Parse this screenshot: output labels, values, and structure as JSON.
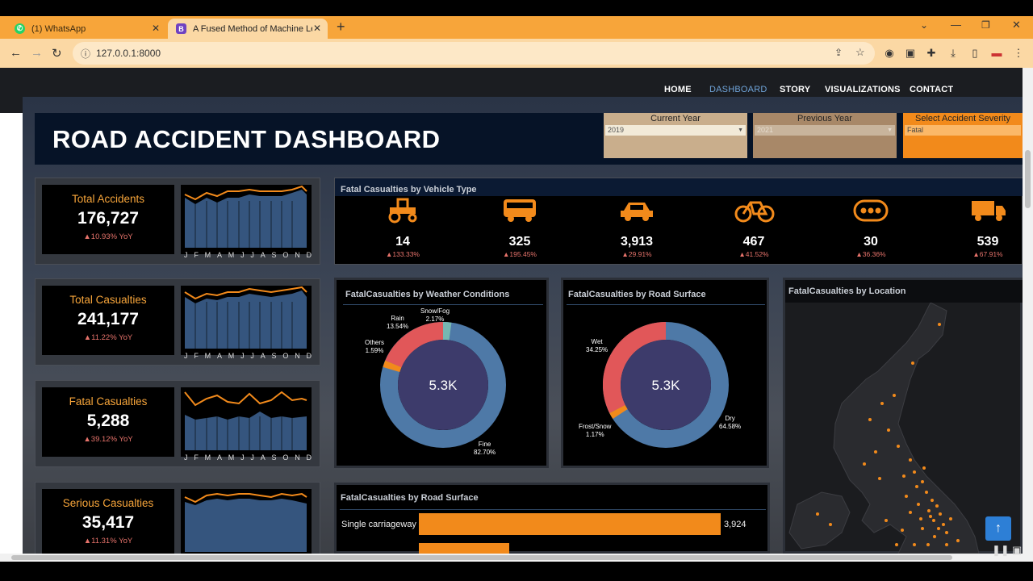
{
  "browser": {
    "tabs": [
      {
        "label": "(1) WhatsApp",
        "icon": "whatsapp-icon"
      },
      {
        "label": "A Fused Method of Machine Lea",
        "icon": "bootstrap-icon"
      }
    ],
    "new_tab_glyph": "+",
    "url": "127.0.0.1:8000"
  },
  "site_nav": {
    "items": [
      "HOME",
      "DASHBOARD",
      "STORY",
      "VISUALIZATIONS",
      "CONTACT"
    ],
    "active": "DASHBOARD"
  },
  "dashboard": {
    "title": "ROAD ACCIDENT DASHBOARD",
    "filters": [
      {
        "label": "Current Year",
        "value": "2019"
      },
      {
        "label": "Previous Year",
        "value": "2021"
      },
      {
        "label": "Select Accident Severity",
        "value": "Fatal"
      }
    ],
    "months": [
      "J",
      "F",
      "M",
      "A",
      "M",
      "J",
      "J",
      "A",
      "S",
      "O",
      "N",
      "D"
    ],
    "kpis": [
      {
        "label": "Total Accidents",
        "value": "176,727",
        "yoy": "▲10.93% YoY"
      },
      {
        "label": "Total Casualties",
        "value": "241,177",
        "yoy": "▲11.22% YoY"
      },
      {
        "label": "Fatal Casualties",
        "value": "5,288",
        "yoy": "▲39.12% YoY"
      },
      {
        "label": "Serious Casualties",
        "value": "35,417",
        "yoy": "▲11.31% YoY"
      }
    ],
    "vehicle_panel": {
      "title": "Fatal Casualties by Vehicle Type",
      "items": [
        {
          "icon": "tractor-icon",
          "value": "14",
          "pct": "▲133.33%"
        },
        {
          "icon": "bus-icon",
          "value": "325",
          "pct": "▲195.45%"
        },
        {
          "icon": "car-icon",
          "value": "3,913",
          "pct": "▲29.91%"
        },
        {
          "icon": "bicycle-icon",
          "value": "467",
          "pct": "▲41.52%"
        },
        {
          "icon": "other-vehicle-icon",
          "value": "30",
          "pct": "▲36.36%"
        },
        {
          "icon": "truck-icon",
          "value": "539",
          "pct": "▲67.91%"
        }
      ]
    },
    "weather_panel": {
      "title": "FatalCasualties by Weather Conditions",
      "center": "5.3K",
      "labels": [
        {
          "name": "Snow/Fog",
          "pct": "2.17%"
        },
        {
          "name": "Rain",
          "pct": "13.54%"
        },
        {
          "name": "Others",
          "pct": "1.59%"
        },
        {
          "name": "Fine",
          "pct": "82.70%"
        }
      ]
    },
    "surface_panel": {
      "title": "FatalCasualties by Road Surface",
      "center": "5.3K",
      "labels": [
        {
          "name": "Wet",
          "pct": "34.25%"
        },
        {
          "name": "Frost/Snow",
          "pct": "1.17%"
        },
        {
          "name": "Dry",
          "pct": "64.58%"
        }
      ]
    },
    "location_panel": {
      "title": "FatalCasualties by Location"
    },
    "roadtype_panel": {
      "title": "FatalCasualties by Road Surface",
      "bars": [
        {
          "label": "Single carriageway",
          "value": "3,924"
        }
      ]
    }
  },
  "colors": {
    "accent": "#f7a53a",
    "blue": "#4e79a7",
    "red": "#e15759",
    "teal": "#76b7b2",
    "navy": "#3d3b6b"
  }
}
